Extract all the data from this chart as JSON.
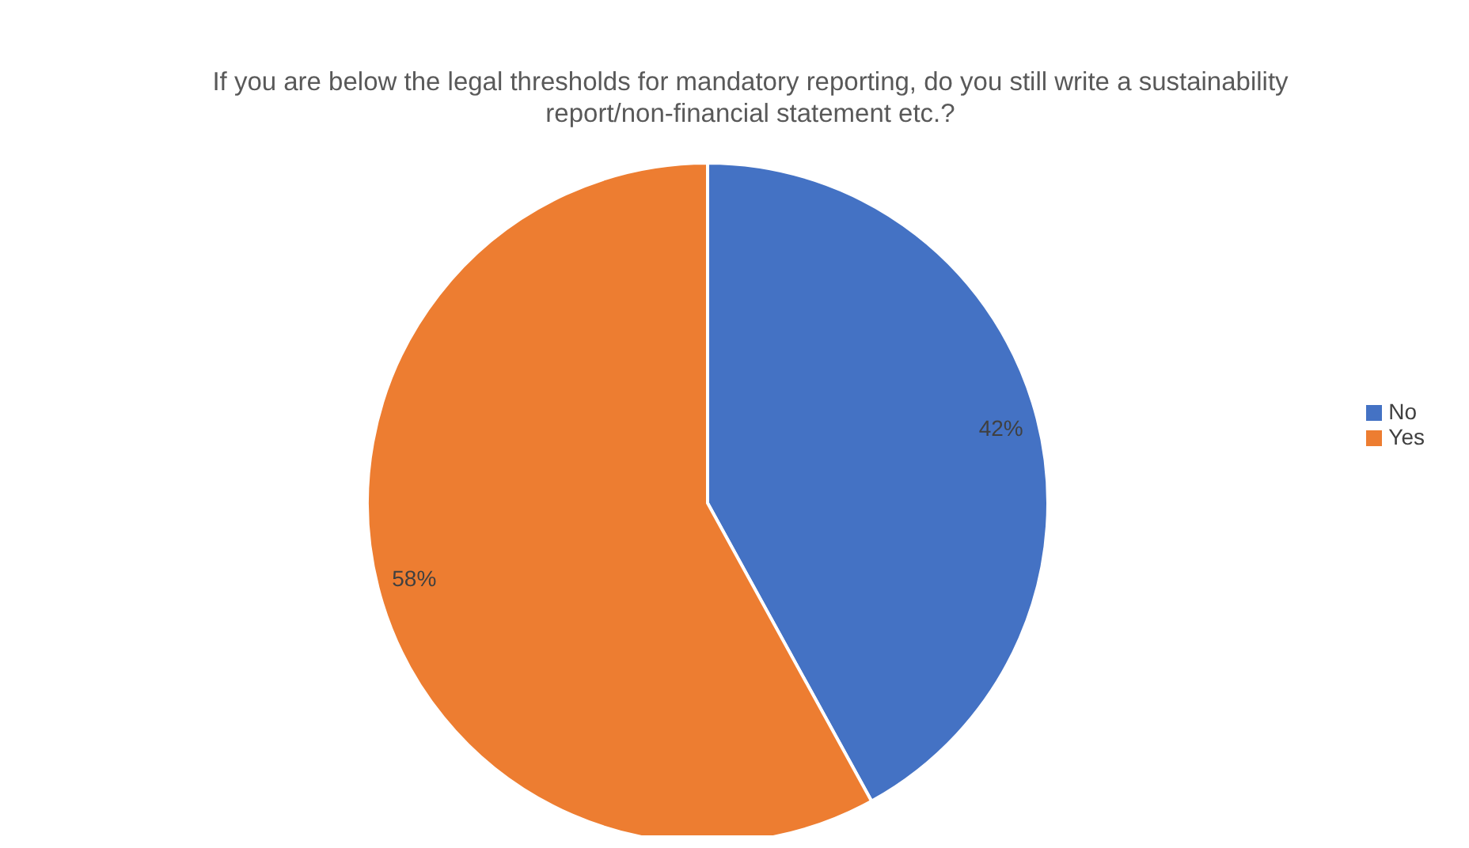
{
  "chart_data": {
    "type": "pie",
    "title": "If you are below the legal thresholds for mandatory reporting, do you still write a sustainability report/non-financial statement etc.?",
    "categories": [
      "No",
      "Yes"
    ],
    "values": [
      42,
      58
    ],
    "colors": [
      "#4472c4",
      "#ed7d31"
    ],
    "value_labels": [
      "42%",
      "58%"
    ],
    "legend": "right"
  }
}
